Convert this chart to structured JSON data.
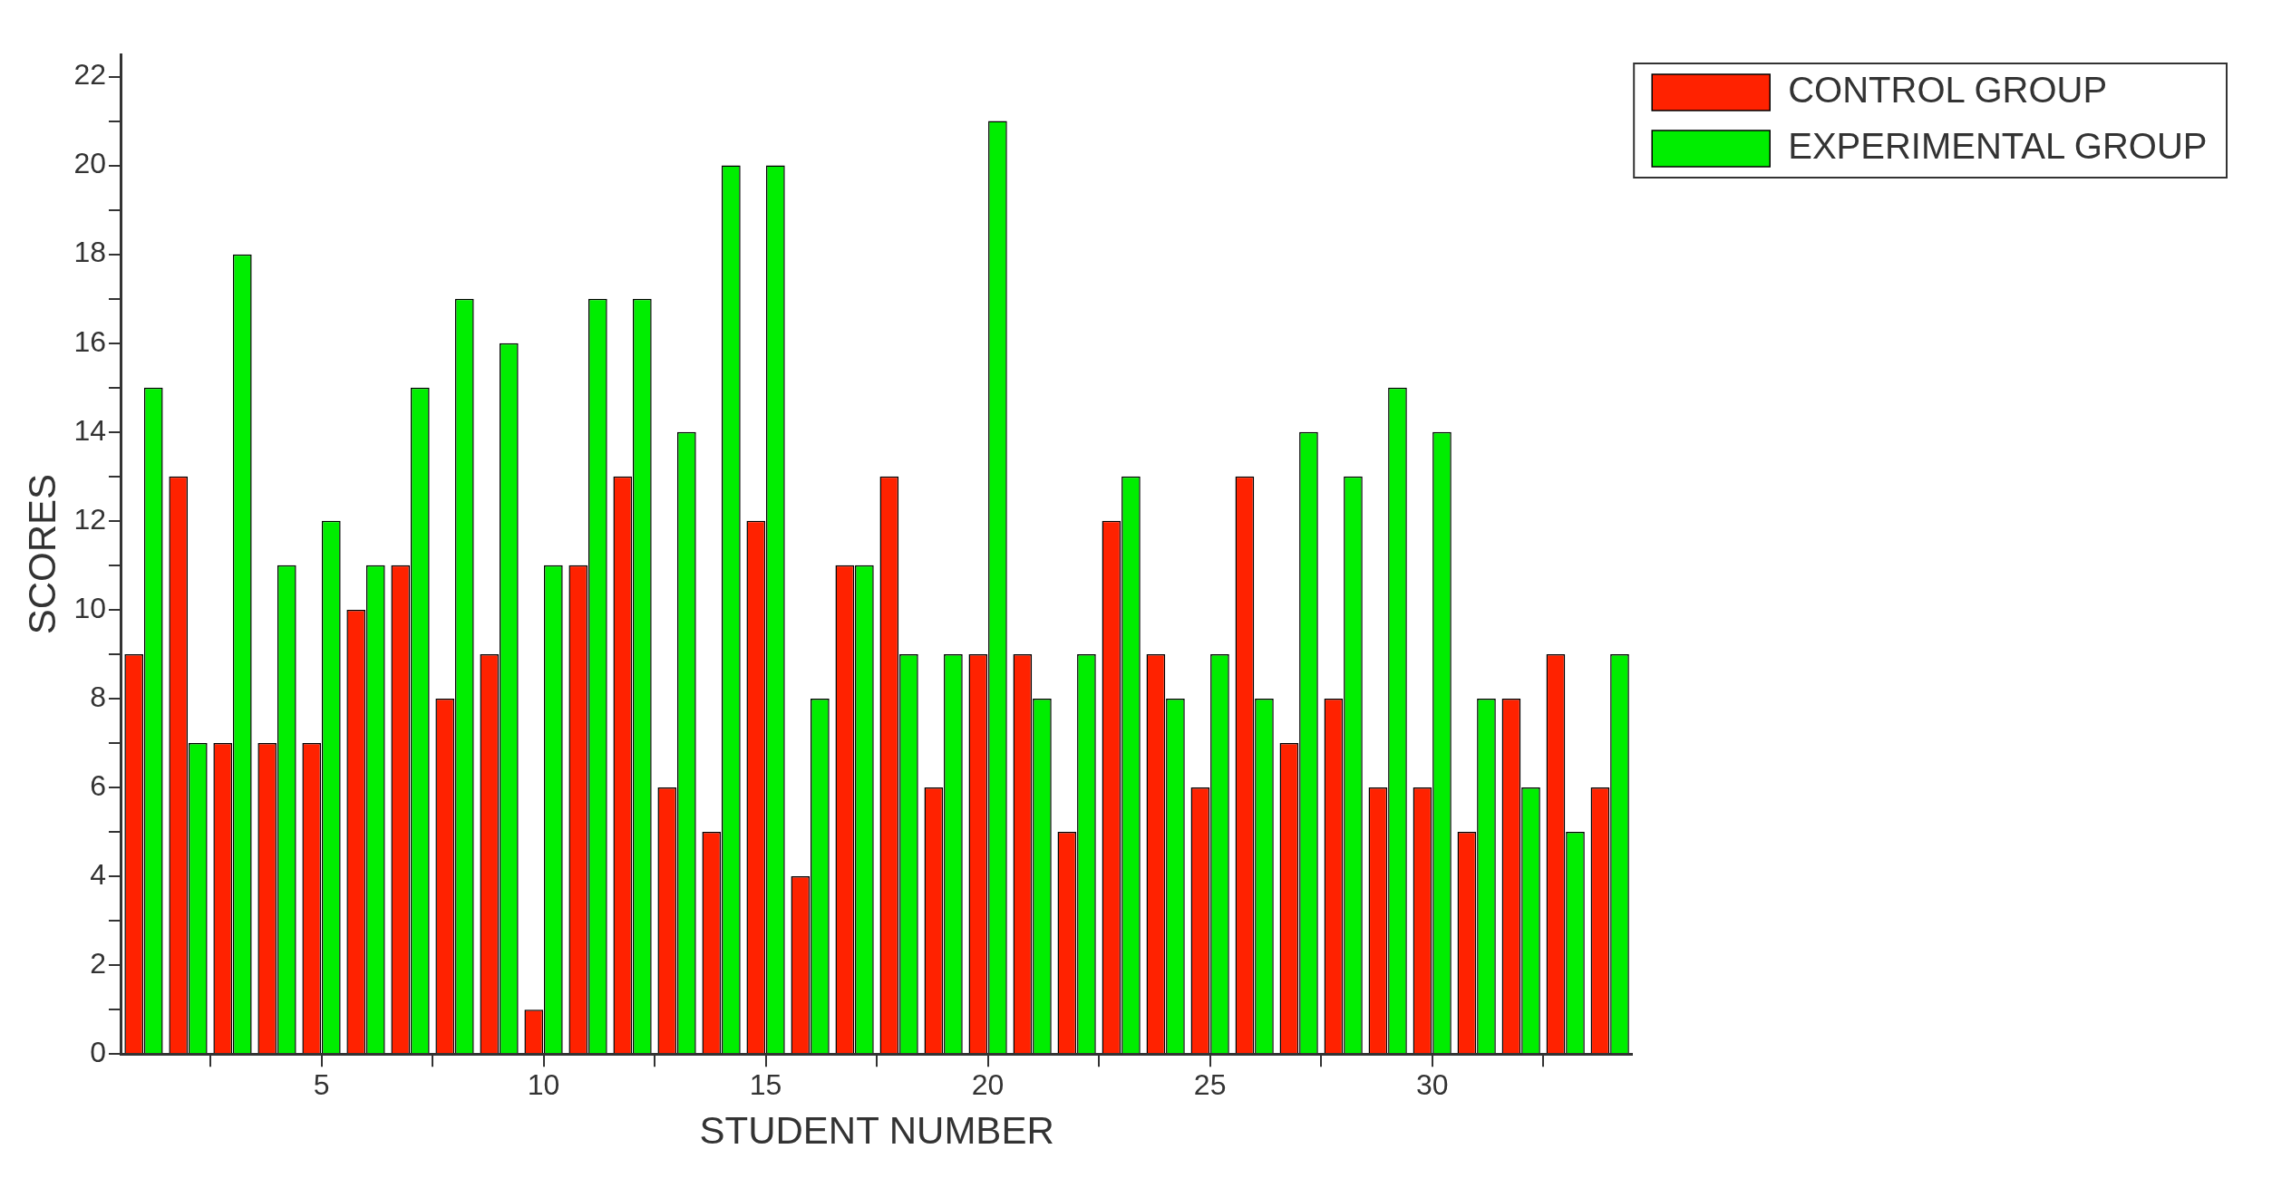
{
  "chart_data": {
    "type": "bar",
    "xlabel": "STUDENT NUMBER",
    "ylabel": "SCORES",
    "x": [
      1,
      2,
      3,
      4,
      5,
      6,
      7,
      8,
      9,
      10,
      11,
      12,
      13,
      14,
      15,
      16,
      17,
      18,
      19,
      20,
      21,
      22,
      23,
      24,
      25,
      26,
      27,
      28,
      29,
      30,
      31,
      32,
      33,
      34
    ],
    "series": [
      {
        "name": "CONTROL GROUP",
        "color": "#ff2200",
        "values": [
          9,
          13,
          7,
          7,
          7,
          10,
          11,
          8,
          9,
          1,
          11,
          13,
          6,
          5,
          12,
          4,
          11,
          13,
          6,
          9,
          9,
          5,
          12,
          9,
          6,
          13,
          7,
          8,
          6,
          6,
          5,
          8,
          9,
          6
        ]
      },
      {
        "name": "EXPERIMENTAL GROUP",
        "color": "#00ee00",
        "values": [
          15,
          7,
          18,
          11,
          12,
          11,
          15,
          17,
          16,
          11,
          17,
          17,
          14,
          20,
          20,
          8,
          11,
          9,
          9,
          21,
          8,
          9,
          13,
          8,
          9,
          8,
          14,
          13,
          15,
          14,
          8,
          6,
          5,
          9
        ]
      }
    ],
    "xlim": [
      0.5,
      34.5
    ],
    "xticks": [
      {
        "value": 2.5,
        "label": null
      },
      5,
      {
        "value": 7.5,
        "label": null
      },
      10,
      {
        "value": 12.5,
        "label": null
      },
      15,
      {
        "value": 17.5,
        "label": null
      },
      20,
      {
        "value": 22.5,
        "label": null
      },
      25,
      {
        "value": 27.5,
        "label": null
      },
      30,
      {
        "value": 32.5,
        "label": null
      }
    ],
    "ylim": [
      0,
      22.5
    ],
    "yticks": [
      0,
      {
        "value": 1,
        "label": null
      },
      2,
      {
        "value": 3,
        "label": null
      },
      4,
      {
        "value": 5,
        "label": null
      },
      6,
      {
        "value": 7,
        "label": null
      },
      8,
      {
        "value": 9,
        "label": null
      },
      10,
      {
        "value": 11,
        "label": null
      },
      12,
      {
        "value": 13,
        "label": null
      },
      14,
      {
        "value": 15,
        "label": null
      },
      16,
      {
        "value": 17,
        "label": null
      },
      18,
      {
        "value": 19,
        "label": null
      },
      20,
      {
        "value": 21,
        "label": null
      },
      22
    ],
    "legend": "top right"
  }
}
